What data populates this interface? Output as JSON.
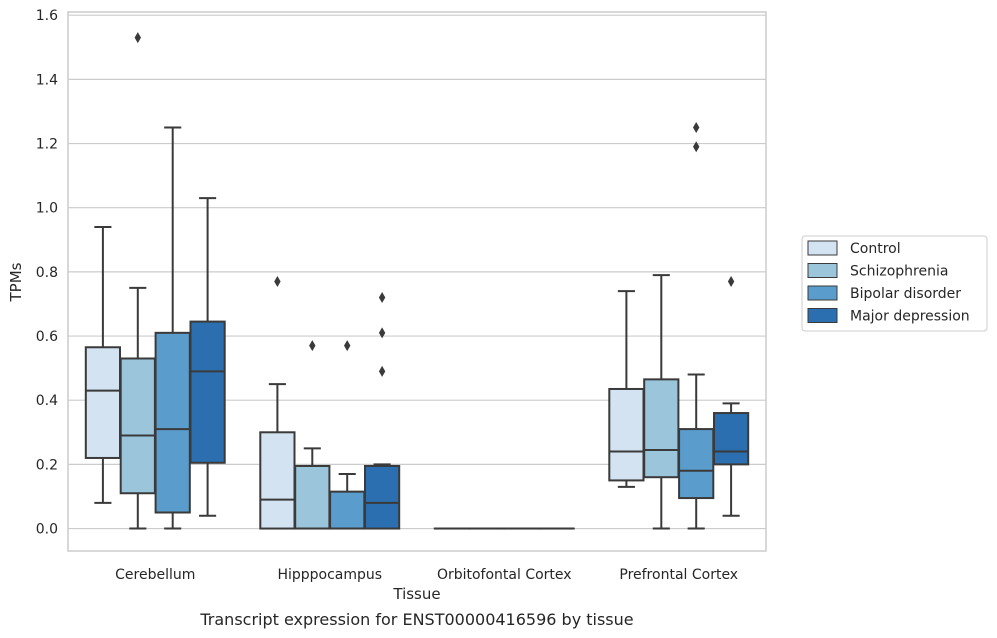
{
  "chart_data": {
    "type": "box",
    "title": "",
    "caption": "Transcript expression for ENST00000416596 by tissue",
    "xlabel": "Tissue",
    "ylabel": "TPMs",
    "ylim": [
      -0.07,
      1.61
    ],
    "yticks": [
      0.0,
      0.2,
      0.4,
      0.6,
      0.8,
      1.0,
      1.2,
      1.4,
      1.6
    ],
    "ytick_labels": [
      "0.0",
      "0.2",
      "0.4",
      "0.6",
      "0.8",
      "1.0",
      "1.2",
      "1.4",
      "1.6"
    ],
    "grid": true,
    "legend_position": "right",
    "categories": [
      "Cerebellum",
      "Hipppocampus",
      "Orbitofontal Cortex",
      "Prefrontal Cortex"
    ],
    "series": [
      {
        "name": "Control",
        "color": "#d3e3f2",
        "boxes": [
          {
            "whisker_low": 0.08,
            "q1": 0.22,
            "median": 0.43,
            "q3": 0.565,
            "whisker_high": 0.94,
            "outliers": []
          },
          {
            "whisker_low": 0.0,
            "q1": 0.0,
            "median": 0.09,
            "q3": 0.3,
            "whisker_high": 0.45,
            "outliers": [
              0.77
            ]
          },
          {
            "whisker_low": 0.0,
            "q1": 0.0,
            "median": 0.0,
            "q3": 0.0,
            "whisker_high": 0.0,
            "outliers": []
          },
          {
            "whisker_low": 0.13,
            "q1": 0.15,
            "median": 0.24,
            "q3": 0.435,
            "whisker_high": 0.74,
            "outliers": []
          }
        ]
      },
      {
        "name": "Schizophrenia",
        "color": "#9ac5db",
        "boxes": [
          {
            "whisker_low": 0.0,
            "q1": 0.11,
            "median": 0.29,
            "q3": 0.53,
            "whisker_high": 0.75,
            "outliers": [
              1.53
            ]
          },
          {
            "whisker_low": 0.0,
            "q1": 0.0,
            "median": 0.0,
            "q3": 0.195,
            "whisker_high": 0.25,
            "outliers": [
              0.57
            ]
          },
          {
            "whisker_low": 0.0,
            "q1": 0.0,
            "median": 0.0,
            "q3": 0.0,
            "whisker_high": 0.0,
            "outliers": []
          },
          {
            "whisker_low": 0.0,
            "q1": 0.16,
            "median": 0.245,
            "q3": 0.465,
            "whisker_high": 0.79,
            "outliers": []
          }
        ]
      },
      {
        "name": "Bipolar disorder",
        "color": "#5a9dcd",
        "boxes": [
          {
            "whisker_low": 0.0,
            "q1": 0.05,
            "median": 0.31,
            "q3": 0.61,
            "whisker_high": 1.25,
            "outliers": []
          },
          {
            "whisker_low": 0.0,
            "q1": 0.0,
            "median": 0.0,
            "q3": 0.115,
            "whisker_high": 0.17,
            "outliers": [
              0.57
            ]
          },
          {
            "whisker_low": 0.0,
            "q1": 0.0,
            "median": 0.0,
            "q3": 0.0,
            "whisker_high": 0.0,
            "outliers": []
          },
          {
            "whisker_low": 0.0,
            "q1": 0.095,
            "median": 0.18,
            "q3": 0.31,
            "whisker_high": 0.48,
            "outliers": [
              1.19,
              1.25
            ]
          }
        ]
      },
      {
        "name": "Major depression",
        "color": "#2b6fb0",
        "boxes": [
          {
            "whisker_low": 0.04,
            "q1": 0.205,
            "median": 0.49,
            "q3": 0.645,
            "whisker_high": 1.03,
            "outliers": []
          },
          {
            "whisker_low": 0.0,
            "q1": 0.0,
            "median": 0.08,
            "q3": 0.195,
            "whisker_high": 0.2,
            "outliers": [
              0.49,
              0.61,
              0.72
            ]
          },
          {
            "whisker_low": 0.0,
            "q1": 0.0,
            "median": 0.0,
            "q3": 0.0,
            "whisker_high": 0.0,
            "outliers": []
          },
          {
            "whisker_low": 0.04,
            "q1": 0.2,
            "median": 0.24,
            "q3": 0.36,
            "whisker_high": 0.39,
            "outliers": [
              0.77
            ]
          }
        ]
      }
    ]
  }
}
